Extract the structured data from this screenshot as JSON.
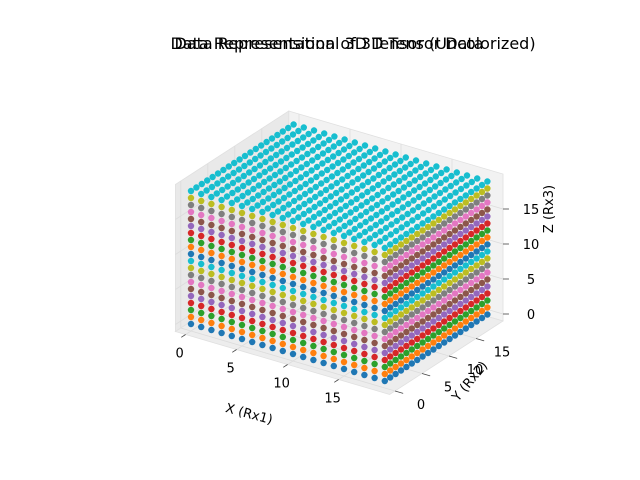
{
  "figure": {
    "title_overlaps": [
      "Data Representation of 3D Tensor Data",
      "Data Represensional 3D Tensor (Uncolorized)"
    ]
  },
  "chart_data": {
    "type": "scatter3d",
    "title": "Data Representation of 3D Tensor Data",
    "xlabel": "X (Rx1)",
    "ylabel": "Y (Rx2)",
    "zlabel": "Z (Rx3)",
    "xlim": [
      0,
      19
    ],
    "ylim": [
      0,
      19
    ],
    "zlim": [
      0,
      19
    ],
    "x_ticks": [
      "0",
      "5",
      "10",
      "15"
    ],
    "y_ticks": [
      "0",
      "5",
      "10",
      "15"
    ],
    "z_ticks": [
      "0",
      "5",
      "10",
      "15"
    ],
    "grid": true,
    "grid_size": [
      20,
      20,
      20
    ],
    "point_colors_by_z": [
      "#1f77b4",
      "#ff7f0e",
      "#2ca02c",
      "#d62728",
      "#9467bd",
      "#8c564b",
      "#e377c2",
      "#7f7f7f",
      "#bcbd22",
      "#17becf",
      "#1f77b4",
      "#ff7f0e",
      "#2ca02c",
      "#d62728",
      "#9467bd",
      "#8c564b",
      "#e377c2",
      "#7f7f7f",
      "#bcbd22",
      "#17becf"
    ],
    "pane_color": "#f2f2f2",
    "grid_color": "#dcdcdc"
  }
}
